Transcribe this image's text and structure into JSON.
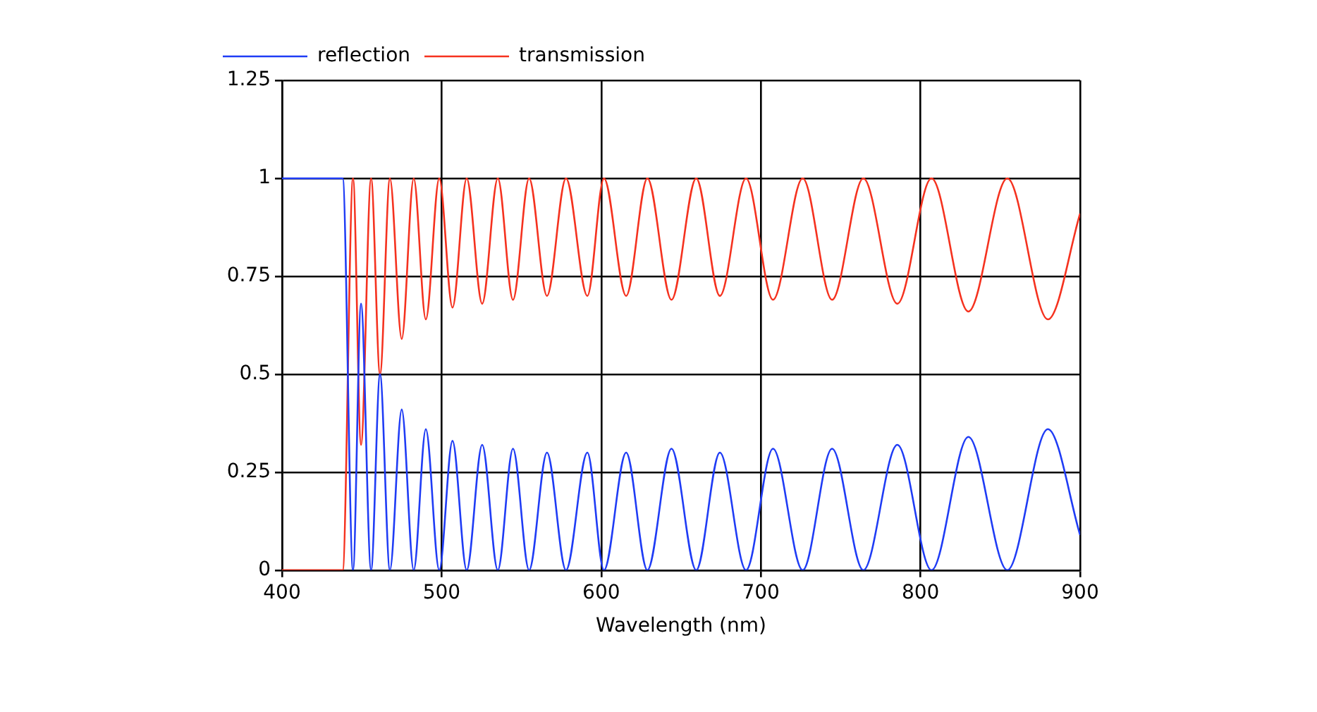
{
  "chart_data": {
    "type": "line",
    "xlabel": "Wavelength (nm)",
    "x": [
      400,
      438,
      444.5,
      449.5,
      455.8,
      461.4,
      467.6,
      475,
      482.5,
      490.1,
      498.5,
      506.8,
      515.7,
      525.4,
      535.2,
      544.7,
      554.8,
      566,
      577.9,
      591.3,
      601.7,
      615.6,
      628.9,
      644,
      659.5,
      674.3,
      690.7,
      707.6,
      726.2,
      744.6,
      764.2,
      785.5,
      806.9,
      830,
      854.4,
      879.8,
      900
    ],
    "series": [
      {
        "name": "reflection",
        "color": "#1f3cf5",
        "values": [
          1,
          1,
          0,
          0.68,
          0,
          0.5,
          0,
          0.41,
          0,
          0.36,
          0,
          0.33,
          0,
          0.32,
          0,
          0.31,
          0,
          0.3,
          0,
          0.3,
          0,
          0.3,
          0,
          0.31,
          0,
          0.3,
          0,
          0.31,
          0,
          0.31,
          0,
          0.32,
          0,
          0.34,
          0,
          0.36,
          0.09
        ]
      },
      {
        "name": "transmission",
        "color": "#f5321f",
        "values": [
          0,
          0,
          1,
          0.32,
          1,
          0.5,
          1,
          0.59,
          1,
          0.64,
          1,
          0.67,
          1,
          0.68,
          1,
          0.69,
          1,
          0.7,
          1,
          0.7,
          1,
          0.7,
          1,
          0.69,
          1,
          0.7,
          1,
          0.69,
          1,
          0.69,
          1,
          0.68,
          1,
          0.66,
          1,
          0.64,
          0.91
        ]
      }
    ],
    "xlim": [
      400,
      900
    ],
    "xticks": [
      400,
      500,
      600,
      700,
      800,
      900
    ],
    "ylim": [
      0,
      1.25
    ],
    "yticks": [
      0,
      0.25,
      0.5,
      0.75,
      1,
      1.25
    ],
    "grid": true,
    "legend": "top left",
    "marker": "none",
    "line_style": "solid"
  }
}
